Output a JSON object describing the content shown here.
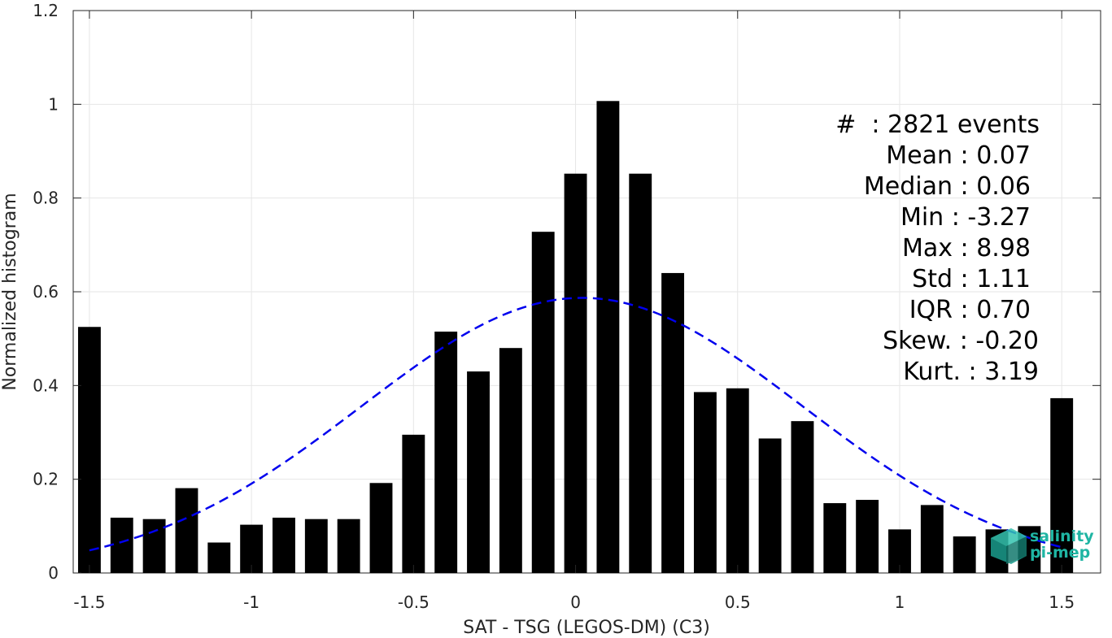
{
  "chart_data": {
    "type": "bar",
    "xlabel": "SAT - TSG (LEGOS-DM) (C3)",
    "ylabel": "Normalized histogram",
    "xlim": [
      -1.55,
      1.62
    ],
    "ylim": [
      0,
      1.2
    ],
    "xticks": [
      -1.5,
      -1,
      -0.5,
      0,
      0.5,
      1,
      1.5
    ],
    "xtick_labels": [
      "-1.5",
      "-1",
      "-0.5",
      "0",
      "0.5",
      "1",
      "1.5"
    ],
    "yticks": [
      0,
      0.2,
      0.4,
      0.6,
      0.8,
      1,
      1.2
    ],
    "ytick_labels": [
      "0",
      "0.2",
      "0.4",
      "0.6",
      "0.8",
      "1",
      "1.2"
    ],
    "grid": true,
    "bar_color": "#000000",
    "bar_width": 0.07,
    "bars": {
      "x": [
        -1.5,
        -1.4,
        -1.3,
        -1.2,
        -1.1,
        -1.0,
        -0.9,
        -0.8,
        -0.7,
        -0.6,
        -0.5,
        -0.4,
        -0.3,
        -0.2,
        -0.1,
        0.0,
        0.1,
        0.2,
        0.3,
        0.4,
        0.5,
        0.6,
        0.7,
        0.8,
        0.9,
        1.0,
        1.1,
        1.2,
        1.3,
        1.4,
        1.5
      ],
      "values": [
        0.525,
        0.118,
        0.115,
        0.181,
        0.065,
        0.103,
        0.118,
        0.115,
        0.115,
        0.192,
        0.295,
        0.515,
        0.43,
        0.48,
        0.728,
        0.852,
        1.007,
        0.852,
        0.64,
        0.386,
        0.394,
        0.287,
        0.324,
        0.149,
        0.156,
        0.093,
        0.145,
        0.078,
        0.093,
        0.1,
        0.373
      ]
    },
    "fit_curve": {
      "style": "dashed",
      "color": "#0000ee",
      "mean": 0.02,
      "std": 0.68,
      "peak": 0.587,
      "x_range": [
        -1.5,
        1.5
      ]
    },
    "annotations": [
      "#  : 2821 events",
      "Mean : 0.07",
      "Median : 0.06",
      "Min : -3.27",
      "Max : 8.98",
      "Std : 1.11",
      "IQR : 0.70",
      "Skew. : -0.20",
      "Kurt. : 3.19"
    ]
  },
  "logo": {
    "line1": "salinity",
    "line2": "pi-mep",
    "color": "#1fb5a3"
  }
}
